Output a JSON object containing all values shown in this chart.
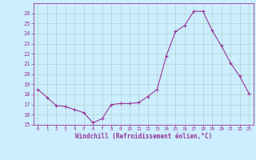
{
  "x": [
    0,
    1,
    2,
    3,
    4,
    5,
    6,
    7,
    8,
    9,
    10,
    11,
    12,
    13,
    14,
    15,
    16,
    17,
    18,
    19,
    20,
    21,
    22,
    23
  ],
  "y": [
    18.5,
    17.7,
    16.9,
    16.8,
    16.5,
    16.2,
    15.2,
    15.6,
    17.0,
    17.1,
    17.1,
    17.2,
    17.8,
    18.5,
    21.8,
    24.2,
    24.8,
    26.2,
    26.2,
    24.3,
    22.8,
    21.1,
    19.8,
    18.1
  ],
  "line_color": "#993399",
  "marker": "+",
  "bg_color": "#cceeff",
  "grid_color": "#aaccbb",
  "xlabel": "Windchill (Refroidissement éolien,°C)",
  "xlabel_color": "#993399",
  "tick_color": "#993399",
  "label_color": "#993399",
  "spine_color": "#993399",
  "ylim": [
    15,
    27
  ],
  "xlim": [
    -0.5,
    23.5
  ],
  "yticks": [
    15,
    16,
    17,
    18,
    19,
    20,
    21,
    22,
    23,
    24,
    25,
    26
  ],
  "xticks": [
    0,
    1,
    2,
    3,
    4,
    5,
    6,
    7,
    8,
    9,
    10,
    11,
    12,
    13,
    14,
    15,
    16,
    17,
    18,
    19,
    20,
    21,
    22,
    23
  ],
  "figsize": [
    3.2,
    2.0
  ],
  "dpi": 100
}
